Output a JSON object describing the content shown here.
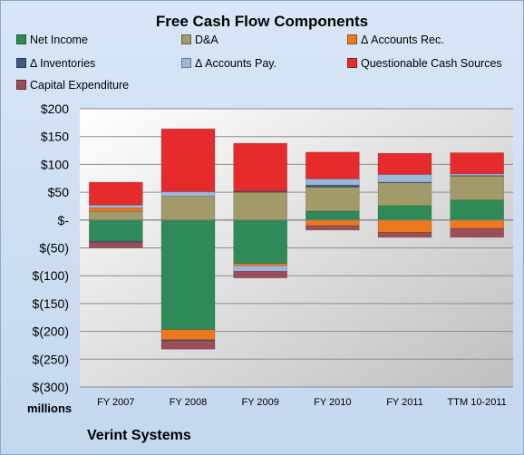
{
  "chart_data": {
    "type": "bar",
    "stacked": true,
    "title": "Free Cash Flow Components",
    "ylabel": "millions",
    "ylim": [
      -300,
      200
    ],
    "yticks": [
      200,
      150,
      100,
      50,
      0,
      -50,
      -100,
      -150,
      -200,
      -250,
      -300
    ],
    "ytick_labels": [
      "$200",
      "$150",
      "$100",
      "$50",
      "$-",
      "$(50)",
      "$(100)",
      "$(150)",
      "$(200)",
      "$(250)",
      "$(300)"
    ],
    "categories": [
      "FY 2007",
      "FY 2008",
      "FY 2009",
      "FY 2010",
      "FY 2011",
      "TTM 10-2011"
    ],
    "grid": true,
    "legend_position": "top",
    "series": [
      {
        "name": "Net Income",
        "color": "#2e8b57",
        "values": [
          -38,
          -197,
          -78,
          16,
          26,
          36
        ]
      },
      {
        "name": "D&A",
        "color": "#a39a6a",
        "values": [
          16,
          43,
          50,
          43,
          41,
          43
        ]
      },
      {
        "name": "Δ Accounts Rec.",
        "color": "#ec7a1c",
        "values": [
          6,
          -18,
          -4,
          -10,
          -22,
          -15
        ]
      },
      {
        "name": "Δ Inventories",
        "color": "#3e5c82",
        "values": [
          -2,
          -2,
          2,
          4,
          1,
          1
        ]
      },
      {
        "name": "Δ Accounts Pay.",
        "color": "#9db6db",
        "values": [
          5,
          8,
          -10,
          11,
          14,
          3
        ]
      },
      {
        "name": "Questionable Cash Sources",
        "color": "#e52b2b",
        "values": [
          41,
          113,
          86,
          48,
          38,
          38
        ]
      },
      {
        "name": "Capital Expenditure",
        "color": "#9b4e57",
        "values": [
          -10,
          -15,
          -12,
          -8,
          -9,
          -16
        ]
      }
    ]
  },
  "footer": {
    "units": "millions",
    "company": "Verint Systems"
  }
}
